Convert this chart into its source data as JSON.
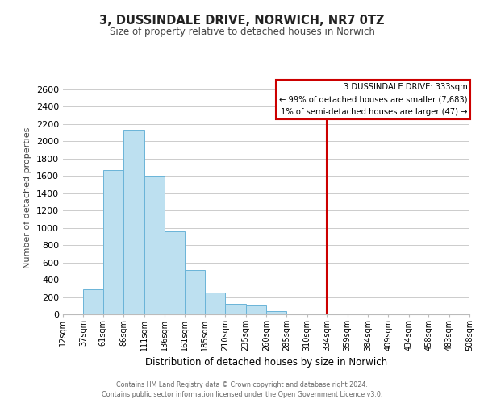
{
  "title": "3, DUSSINDALE DRIVE, NORWICH, NR7 0TZ",
  "subtitle": "Size of property relative to detached houses in Norwich",
  "xlabel": "Distribution of detached houses by size in Norwich",
  "ylabel": "Number of detached properties",
  "bar_color": "#bde0f0",
  "bar_edge_color": "#6ab4d8",
  "background_color": "#ffffff",
  "grid_color": "#cccccc",
  "bin_edges": [
    12,
    37,
    61,
    86,
    111,
    136,
    161,
    185,
    210,
    235,
    260,
    285,
    310,
    334,
    359,
    384,
    409,
    434,
    458,
    483,
    508
  ],
  "bar_heights": [
    10,
    290,
    1670,
    2130,
    1600,
    960,
    510,
    250,
    125,
    100,
    35,
    10,
    5,
    5,
    3,
    2,
    2,
    1,
    2,
    5
  ],
  "tick_labels": [
    "12sqm",
    "37sqm",
    "61sqm",
    "86sqm",
    "111sqm",
    "136sqm",
    "161sqm",
    "185sqm",
    "210sqm",
    "235sqm",
    "260sqm",
    "285sqm",
    "310sqm",
    "334sqm",
    "359sqm",
    "384sqm",
    "409sqm",
    "434sqm",
    "458sqm",
    "483sqm",
    "508sqm"
  ],
  "ylim": [
    0,
    2700
  ],
  "yticks": [
    0,
    200,
    400,
    600,
    800,
    1000,
    1200,
    1400,
    1600,
    1800,
    2000,
    2200,
    2400,
    2600
  ],
  "red_line_x": 334,
  "annotation_title": "3 DUSSINDALE DRIVE: 333sqm",
  "annotation_line1": "← 99% of detached houses are smaller (7,683)",
  "annotation_line2": "1% of semi-detached houses are larger (47) →",
  "annotation_box_color": "#ffffff",
  "annotation_border_color": "#cc0000",
  "footer_line1": "Contains HM Land Registry data © Crown copyright and database right 2024.",
  "footer_line2": "Contains public sector information licensed under the Open Government Licence v3.0."
}
